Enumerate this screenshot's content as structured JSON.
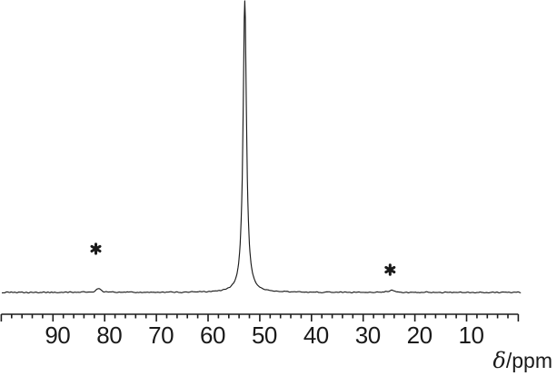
{
  "figure": {
    "background": "#ffffff",
    "line_color": "#1c1c1c",
    "text_color": "#1a1a1a"
  },
  "chart_data": {
    "type": "line",
    "title": "",
    "xlabel": "δ/ppm",
    "xlabel_delta": "δ",
    "xlabel_rest": "/ppm",
    "x_range": [
      100,
      0
    ],
    "x_axis_reversed": true,
    "x_major_ticks": [
      90,
      80,
      70,
      60,
      50,
      40,
      30,
      20,
      10
    ],
    "x_minor_tick_step": 2,
    "ylabel": "",
    "grid": false,
    "legend": false,
    "peaks": [
      {
        "center_ppm": 52.9,
        "rel_height": 1.0,
        "hwhm_ppm": 0.4
      },
      {
        "center_ppm": 81.2,
        "rel_height": 0.0125,
        "hwhm_ppm": 0.6,
        "marker": "*"
      },
      {
        "center_ppm": 24.5,
        "rel_height": 0.008,
        "hwhm_ppm": 0.6,
        "marker": "*"
      }
    ],
    "annotations": [
      {
        "text": "*",
        "ppm": 81.7,
        "y_frac_above_baseline": 0.15
      },
      {
        "text": "*",
        "ppm": 24.8,
        "y_frac_above_baseline": 0.078
      }
    ]
  }
}
